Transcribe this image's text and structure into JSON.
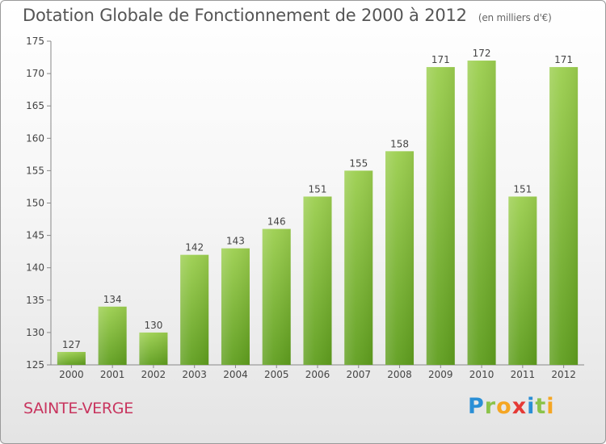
{
  "chart_data": {
    "type": "bar",
    "title": "Dotation Globale de Fonctionnement de 2000 à 2012",
    "subtitle": "(en milliers d'€)",
    "categories": [
      "2000",
      "2001",
      "2002",
      "2003",
      "2004",
      "2005",
      "2006",
      "2007",
      "2008",
      "2009",
      "2010",
      "2011",
      "2012"
    ],
    "values": [
      127,
      134,
      130,
      142,
      143,
      146,
      151,
      155,
      158,
      171,
      172,
      151,
      171
    ],
    "ylim": [
      125,
      175
    ],
    "yticks": [
      125,
      130,
      135,
      140,
      145,
      150,
      155,
      160,
      165,
      170,
      175
    ],
    "grid": false,
    "bar_color": "#7db83a"
  },
  "footer": {
    "commune": "SAINTE-VERGE",
    "logo_letters": [
      "P",
      "r",
      "o",
      "x",
      "i",
      "t",
      "i"
    ],
    "logo_colors": [
      "#2a8fd6",
      "#8bc34a",
      "#f5a623",
      "#e53935",
      "#2a8fd6",
      "#8bc34a",
      "#f5a623"
    ]
  }
}
